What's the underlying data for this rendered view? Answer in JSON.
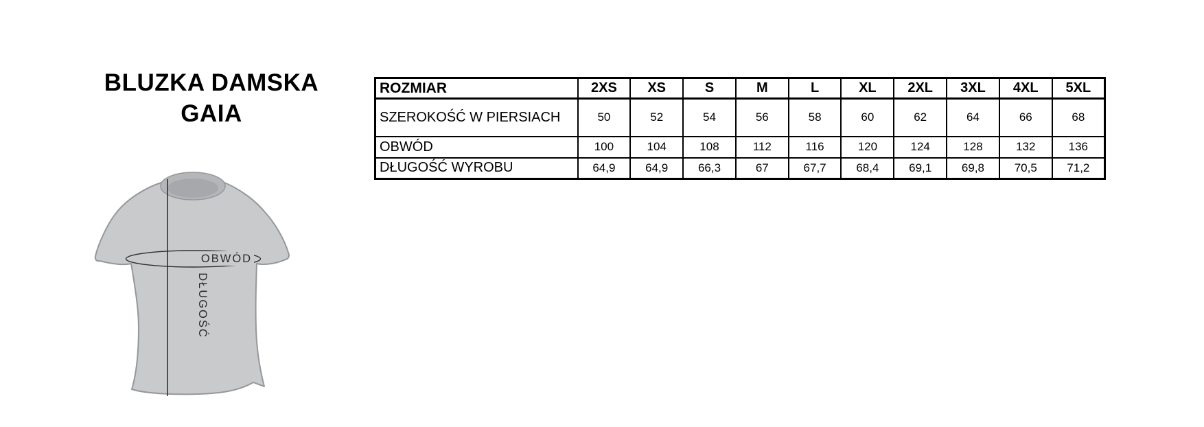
{
  "page": {
    "background": "#ffffff"
  },
  "title": {
    "line1": "BLUZKA DAMSKA",
    "line2": "GAIA"
  },
  "diagram": {
    "circumference_label": "OBWÓD",
    "length_label": "DŁUGOŚĆ",
    "shirt_fill": "#c9cacc",
    "shirt_outline": "#96979b",
    "collar_fill": "#b5b6b8",
    "collar_inner_fill": "#a7a8ab",
    "measure_line_color": "#2e2e30",
    "label_text_color": "#2a2a2c"
  },
  "colors": {
    "table-border": "#000000",
    "table-text": "#000000"
  },
  "size_table": {
    "header_label": "ROZMIAR",
    "sizes": [
      "2XS",
      "XS",
      "S",
      "M",
      "L",
      "XL",
      "2XL",
      "3XL",
      "4XL",
      "5XL"
    ],
    "rows": [
      {
        "label": "SZEROKOŚĆ W PIERSIACH",
        "values": [
          "50",
          "52",
          "54",
          "56",
          "58",
          "60",
          "62",
          "64",
          "66",
          "68"
        ]
      },
      {
        "label": "OBWÓD",
        "values": [
          "100",
          "104",
          "108",
          "112",
          "116",
          "120",
          "124",
          "128",
          "132",
          "136"
        ]
      },
      {
        "label": "DŁUGOŚĆ WYROBU",
        "values": [
          "64,9",
          "64,9",
          "66,3",
          "67",
          "67,7",
          "68,4",
          "69,1",
          "69,8",
          "70,5",
          "71,2"
        ]
      }
    ]
  }
}
